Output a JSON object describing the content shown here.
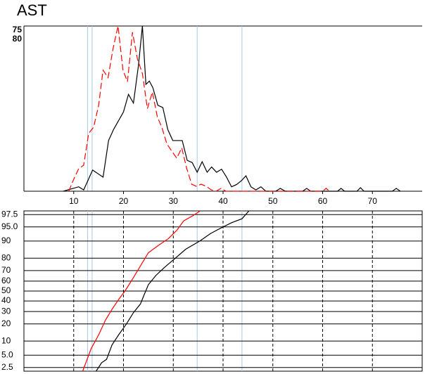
{
  "chart_data": [
    {
      "type": "line",
      "title": "AST",
      "xlim": [
        0,
        80
      ],
      "xticks": [
        10,
        20,
        30,
        40,
        50,
        60,
        70
      ],
      "reference_lines": [
        12.8,
        13.7,
        34.8,
        43.8
      ],
      "reference_color": "#a8c8e8",
      "series": [
        {
          "name": "75",
          "color": "#000000",
          "dash": false,
          "ylim": [
            0,
            75
          ],
          "x": [
            7.9,
            11,
            12,
            13.8,
            15.9,
            17,
            18,
            20,
            21,
            22,
            23,
            23.8,
            24.5,
            25.2,
            25.9,
            26.9,
            27.9,
            28.9,
            29.9,
            30.8,
            31.8,
            32.8,
            33.8,
            34.8,
            35.8,
            36.8,
            37.7,
            38.7,
            39.7,
            40.7,
            41.7,
            42.7,
            43.7,
            44.6,
            45.6,
            46.6,
            47.6,
            48.6,
            50.6,
            51.5,
            52.5,
            56,
            56.8,
            57.6,
            63,
            63.7,
            64.4,
            66.9,
            67.6,
            68.3,
            74,
            74.8,
            75.6
          ],
          "values": [
            0,
            2,
            0.6,
            9.6,
            6.4,
            23,
            28,
            36,
            44,
            40,
            57,
            75,
            48.5,
            50,
            47,
            39,
            38,
            28,
            23,
            23,
            23,
            14,
            13,
            8.6,
            13.4,
            8.6,
            11,
            8.6,
            10,
            6.4,
            2,
            3,
            4.8,
            7,
            2,
            0.6,
            2,
            0,
            0,
            1.3,
            0,
            0,
            1.3,
            0,
            0,
            1.3,
            0,
            0,
            1.6,
            0,
            0,
            1.3,
            0
          ]
        },
        {
          "name": "80",
          "color": "#ff0000",
          "dash": true,
          "ylim": [
            0,
            80
          ],
          "x": [
            9,
            10,
            11,
            12,
            13,
            14,
            15,
            15.9,
            16.9,
            17.9,
            18.9,
            19.9,
            20.8,
            21.8,
            22.8,
            23.8,
            24.8,
            25.8,
            26.8,
            27.7,
            28.7,
            29.7,
            30.7,
            31.7,
            32.7,
            33.7,
            34.6,
            35.6,
            36.6,
            37.6,
            38.6,
            39.6,
            40.6,
            60,
            60.7,
            61.4
          ],
          "values": [
            0,
            5.8,
            10.9,
            12.6,
            28,
            31,
            41.5,
            58.6,
            55,
            69,
            80,
            58.6,
            53,
            77,
            64,
            57,
            40,
            48,
            36,
            31,
            23,
            19.4,
            16,
            21,
            11,
            3.4,
            2.4,
            3.4,
            2.4,
            0.7,
            0,
            1.4,
            0,
            0,
            1.4,
            0
          ]
        }
      ]
    },
    {
      "type": "probability",
      "xlim": [
        0,
        80
      ],
      "xticks": [
        10,
        20,
        30,
        40,
        50,
        60,
        70
      ],
      "ylim": [
        2,
        98
      ],
      "yticks": [
        2.5,
        {
          "value": 5,
          "label": "5.0"
        },
        10,
        20,
        30,
        40,
        50,
        60,
        70,
        80,
        90,
        {
          "value": 95,
          "label": "95.0"
        },
        97.5
      ],
      "grid": true,
      "series": [
        {
          "name": "75",
          "color": "#000000",
          "x": [
            14.5,
            15.6,
            16.6,
            17.7,
            19.1,
            20.6,
            22,
            23.4,
            24.1,
            25,
            26.5,
            28.3,
            30.4,
            32.5,
            35.4,
            37.5,
            39.6,
            41.7,
            43.8,
            45.2
          ],
          "values": [
            2,
            3.3,
            4,
            8.4,
            13.4,
            20,
            29,
            37,
            45.6,
            56.5,
            65.5,
            73,
            80,
            85.8,
            90.1,
            93,
            94.7,
            96,
            96.8,
            98
          ]
        },
        {
          "name": "80",
          "color": "#ff0000",
          "x": [
            11.8,
            13.5,
            15,
            16.4,
            17.7,
            19.1,
            20.3,
            22,
            23.4,
            25,
            26.9,
            29,
            30.7,
            32.1,
            33.9,
            35.4
          ],
          "values": [
            2,
            7,
            13,
            23,
            32,
            42,
            50,
            63.5,
            74,
            83.7,
            87.7,
            91,
            94,
            96.4,
            97.3,
            98
          ]
        }
      ]
    }
  ]
}
